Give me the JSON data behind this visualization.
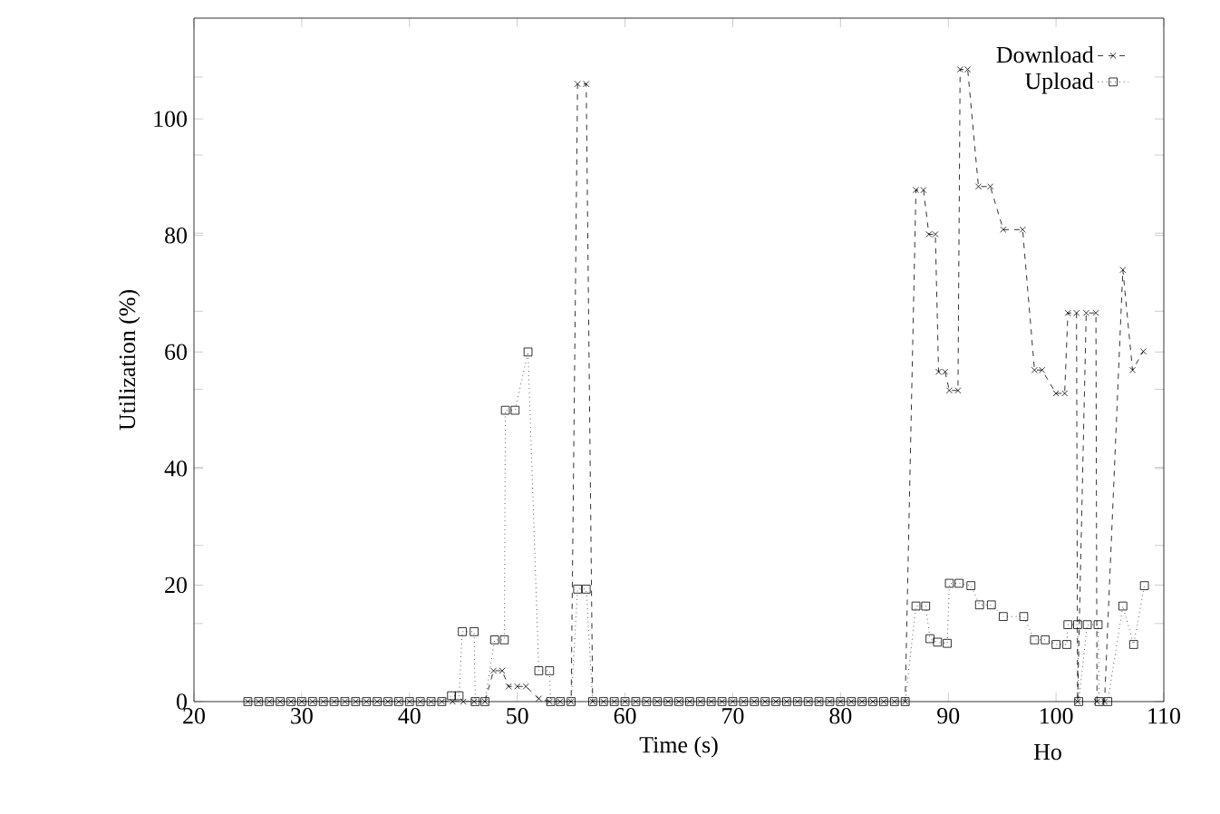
{
  "chart_data": {
    "type": "line",
    "xlabel": "Time (s)",
    "ylabel": "Utilization (%)",
    "annotations": [
      "Ho"
    ],
    "xlim": [
      20,
      110
    ],
    "xticks": [
      20,
      30,
      40,
      50,
      60,
      70,
      80,
      90,
      100,
      110
    ],
    "ylim": [
      0,
      117.3
    ],
    "yticks": [
      0,
      {
        "value": 13.4,
        "label": null
      },
      20,
      {
        "value": 26.8,
        "label": null
      },
      {
        "value": 40.2,
        "label": null
      },
      40,
      {
        "value": 53.6,
        "label": null
      },
      60,
      {
        "value": 67,
        "label": null
      },
      80,
      {
        "value": 80.4,
        "label": null
      },
      {
        "value": 93.8,
        "label": null
      },
      100,
      {
        "value": 107.2,
        "label": null
      }
    ],
    "grid": false,
    "legend": "top right",
    "series": [
      {
        "name": "Download",
        "color": "#000000",
        "line_style": "dashed",
        "marker": "cross",
        "x": [
          25,
          26,
          27,
          28,
          29,
          30,
          31,
          32,
          33,
          34,
          35,
          36,
          37,
          38,
          39,
          40,
          41,
          42,
          43,
          44,
          45,
          46,
          47,
          47.8,
          48.6,
          49.2,
          50,
          50.8,
          52,
          53,
          54,
          55,
          55.6,
          56.4,
          57,
          58,
          59,
          60,
          61,
          62,
          63,
          64,
          65,
          66,
          67,
          68,
          69,
          70,
          71,
          72,
          73,
          74,
          75,
          76,
          77,
          78,
          79,
          80,
          81,
          82,
          83,
          84,
          85,
          86,
          87,
          87.7,
          88.2,
          88.8,
          89.1,
          89.7,
          90.1,
          90.9,
          91.1,
          91.8,
          92.8,
          93.9,
          95.1,
          96.9,
          98,
          98.7,
          100,
          100.8,
          101.1,
          101.9,
          102,
          102.8,
          103.7,
          103.8,
          104.5,
          106.2,
          107.1,
          108.1
        ],
        "values": [
          0,
          0,
          0,
          0,
          0,
          0,
          0,
          0,
          0,
          0,
          0,
          0,
          0,
          0,
          0,
          0,
          0,
          0,
          0,
          0,
          0,
          0,
          0,
          5.3,
          5.3,
          2.6,
          2.6,
          2.6,
          0.5,
          0,
          0,
          0,
          106,
          106,
          0,
          0,
          0,
          0,
          0,
          0,
          0,
          0,
          0,
          0,
          0,
          0,
          0,
          0,
          0,
          0,
          0,
          0,
          0,
          0,
          0,
          0,
          0,
          0,
          0,
          0,
          0,
          0,
          0,
          0,
          87.8,
          87.8,
          80.2,
          80.2,
          56.6,
          56.6,
          53.4,
          53.4,
          108.5,
          108.5,
          88.4,
          88.4,
          81,
          81,
          56.9,
          56.9,
          52.9,
          52.9,
          66.7,
          66.7,
          0,
          66.7,
          66.7,
          0,
          0,
          74.1,
          56.9,
          60.1
        ]
      },
      {
        "name": "Upload",
        "color": "#000000",
        "line_style": "dotted",
        "marker": "square",
        "x": [
          25,
          26,
          27,
          28,
          29,
          30,
          31,
          32,
          33,
          34,
          35,
          36,
          37,
          38,
          39,
          40,
          41,
          42,
          43,
          43.9,
          44.6,
          44.9,
          46,
          46.1,
          47,
          47.9,
          48.8,
          48.9,
          49.8,
          51,
          52,
          53,
          53.1,
          54,
          55,
          55.6,
          56.4,
          57,
          58,
          59,
          60,
          61,
          62,
          63,
          64,
          65,
          66,
          67,
          68,
          69,
          70,
          71,
          72,
          73,
          74,
          75,
          76,
          77,
          78,
          79,
          80,
          81,
          82,
          83,
          84,
          85,
          86,
          87,
          87.9,
          88.3,
          89,
          89.9,
          90.1,
          91,
          92.1,
          92.9,
          94,
          95.1,
          97,
          98,
          99,
          100,
          101,
          101.1,
          102,
          102.1,
          102.9,
          103.9,
          104,
          104.8,
          106.2,
          107.2,
          108.2
        ],
        "values": [
          0,
          0,
          0,
          0,
          0,
          0,
          0,
          0,
          0,
          0,
          0,
          0,
          0,
          0,
          0,
          0,
          0,
          0,
          0,
          1,
          1,
          12,
          12,
          0,
          0,
          10.6,
          10.6,
          50,
          50,
          60,
          5.3,
          5.3,
          0,
          0,
          0,
          19.3,
          19.3,
          0,
          0,
          0,
          0,
          0,
          0,
          0,
          0,
          0,
          0,
          0,
          0,
          0,
          0,
          0,
          0,
          0,
          0,
          0,
          0,
          0,
          0,
          0,
          0,
          0,
          0,
          0,
          0,
          0,
          0,
          16.4,
          16.4,
          10.8,
          10.2,
          10,
          20.3,
          20.3,
          19.9,
          16.6,
          16.6,
          14.6,
          14.6,
          10.6,
          10.6,
          9.8,
          9.8,
          13.2,
          13.2,
          0,
          13.2,
          13.2,
          0,
          0,
          16.4,
          9.8,
          19.9
        ]
      }
    ]
  }
}
